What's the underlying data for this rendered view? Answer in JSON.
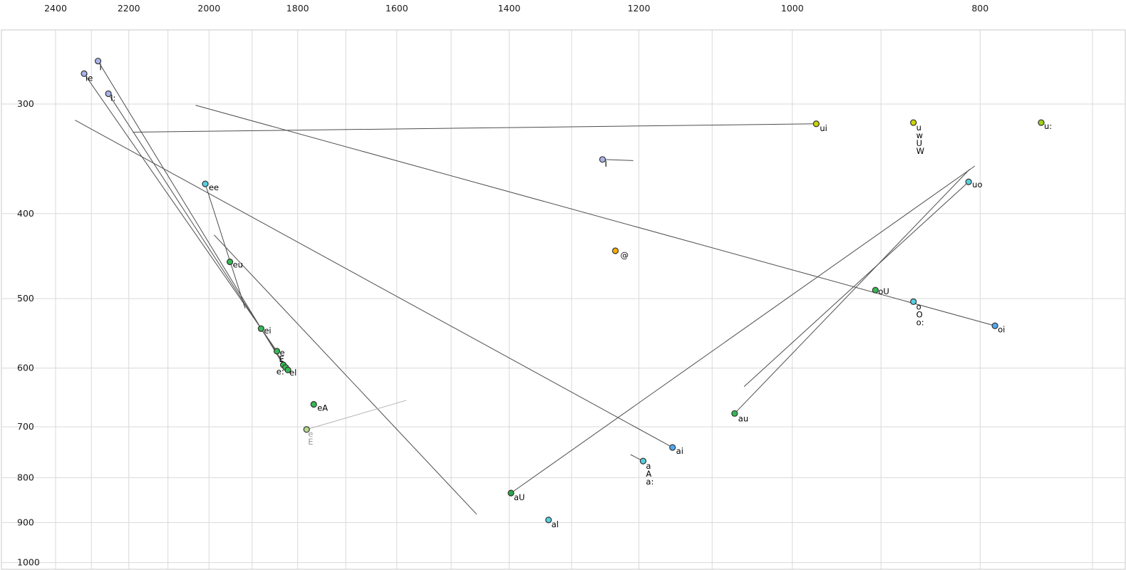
{
  "chart_data": {
    "type": "scatter",
    "title": "",
    "xlabel": "",
    "ylabel": "",
    "description": "Vowel formant chart (F2 horizontal reversed log axis in Hz, F1 vertical log axis in Hz) with monophthong/diphthong points and trajectory lines",
    "x_axis": {
      "scale": "log",
      "reversed": true,
      "range": [
        2550,
        675
      ],
      "major_ticks": [
        2400,
        2200,
        2000,
        1800,
        1600,
        1400,
        1200,
        1000,
        800
      ],
      "minor_ticks": [
        2300,
        2100,
        1900,
        1700,
        1500,
        1300,
        1100,
        900,
        700
      ]
    },
    "y_axis": {
      "scale": "log",
      "increases_downward": true,
      "range": [
        248,
        1015
      ],
      "major_ticks": [
        300,
        400,
        500,
        600,
        700,
        800,
        900,
        1000
      ],
      "minor_ticks": []
    },
    "grid": true,
    "legend": false,
    "grid_color": "#d9d9d9",
    "border_color": "#c9c9c9",
    "line_color": "#4d4d4d",
    "points": [
      {
        "labels": [
          "ie"
        ],
        "f2": 2320,
        "f1": 277,
        "color": "#a9b4e8",
        "label_offset": [
          2,
          10
        ]
      },
      {
        "labels": [
          "i"
        ],
        "f2": 2282,
        "f1": 268,
        "color": "#a9b4e8",
        "label_offset": [
          2,
          13
        ]
      },
      {
        "labels": [
          "I:"
        ],
        "f2": 2254,
        "f1": 292,
        "color": "#a9b4e8",
        "label_offset": [
          3,
          10
        ]
      },
      {
        "labels": [
          "ui"
        ],
        "f2": 972,
        "f1": 316,
        "color": "#c9d400",
        "label_offset": [
          5,
          10
        ]
      },
      {
        "labels": [
          "u",
          "w",
          "U",
          "W"
        ],
        "f2": 866,
        "f1": 315,
        "color": "#c9d400",
        "label_offset": [
          4,
          11
        ]
      },
      {
        "labels": [
          "u:"
        ],
        "f2": 744,
        "f1": 315,
        "color": "#9ed114",
        "label_offset": [
          4,
          9
        ]
      },
      {
        "labels": [
          "I"
        ],
        "f2": 1253,
        "f1": 347,
        "color": "#a9b4e8",
        "label_offset": [
          3,
          10
        ]
      },
      {
        "labels": [
          "ee"
        ],
        "f2": 2009,
        "f1": 370,
        "color": "#56cfe0",
        "label_offset": [
          5,
          9
        ]
      },
      {
        "labels": [
          "uo"
        ],
        "f2": 811,
        "f1": 368,
        "color": "#56cfe0",
        "label_offset": [
          5,
          8
        ]
      },
      {
        "labels": [
          "@"
        ],
        "f2": 1234,
        "f1": 441,
        "color": "#ffae00",
        "label_offset": [
          7,
          10
        ]
      },
      {
        "labels": [
          "eu"
        ],
        "f2": 1951,
        "f1": 454,
        "color": "#35b954",
        "label_offset": [
          4,
          8
        ]
      },
      {
        "labels": [
          "oU"
        ],
        "f2": 906,
        "f1": 489,
        "color": "#35b954",
        "label_offset": [
          4,
          6
        ]
      },
      {
        "labels": [
          "o",
          "O",
          "o:"
        ],
        "f2": 866,
        "f1": 504,
        "color": "#56cfe0",
        "label_offset": [
          4,
          11
        ]
      },
      {
        "labels": [
          "oi"
        ],
        "f2": 786,
        "f1": 537,
        "color": "#4fa8f7",
        "label_offset": [
          4,
          9
        ]
      },
      {
        "labels": [
          "ei"
        ],
        "f2": 1880,
        "f1": 541,
        "color": "#35b954",
        "label_offset": [
          4,
          7
        ]
      },
      {
        "labels": [
          "e"
        ],
        "f2": 1845,
        "f1": 574,
        "color": "#35b954",
        "label_offset": [
          4,
          6
        ]
      },
      {
        "labels": [
          "E"
        ],
        "f2": 1831,
        "f1": 595,
        "color": "#35b954",
        "label_offset": [
          -6,
          -4
        ]
      },
      {
        "labels": [
          "e:"
        ],
        "f2": 1826,
        "f1": 599,
        "color": "#35b954",
        "label_offset": [
          -13,
          10
        ]
      },
      {
        "labels": [
          "el"
        ],
        "f2": 1821,
        "f1": 603,
        "color": "#35b954",
        "label_offset": [
          2,
          8
        ]
      },
      {
        "labels": [
          "eA"
        ],
        "f2": 1766,
        "f1": 660,
        "color": "#35b954",
        "label_offset": [
          5,
          9
        ]
      },
      {
        "labels": [
          "au"
        ],
        "f2": 1071,
        "f1": 676,
        "color": "#35b954",
        "label_offset": [
          5,
          11
        ]
      },
      {
        "labels": [
          "e",
          "E"
        ],
        "f2": 1781,
        "f1": 705,
        "color": "#b5d98c",
        "label_color": "#9a9a9a",
        "label_offset": [
          2,
          10
        ]
      },
      {
        "labels": [
          "ai"
        ],
        "f2": 1153,
        "f1": 739,
        "color": "#4fa8f7",
        "label_offset": [
          5,
          9
        ]
      },
      {
        "labels": [
          "a",
          "A",
          "a:"
        ],
        "f2": 1194,
        "f1": 766,
        "color": "#56cfe0",
        "label_offset": [
          4,
          11
        ]
      },
      {
        "labels": [
          "aU"
        ],
        "f2": 1397,
        "f1": 833,
        "color": "#2aa84a",
        "label_offset": [
          4,
          10
        ]
      },
      {
        "labels": [
          "al"
        ],
        "f2": 1336,
        "f1": 894,
        "color": "#56cfe0",
        "label_offset": [
          4,
          10
        ]
      }
    ],
    "trajectories": [
      {
        "name": "ui",
        "from": [
          972,
          316
        ],
        "to": [
          2189,
          323
        ],
        "color": "#4d4d4d"
      },
      {
        "name": "oi",
        "from": [
          786,
          537
        ],
        "to": [
          2032,
          301
        ],
        "color": "#4d4d4d"
      },
      {
        "name": "ai",
        "from": [
          1153,
          739
        ],
        "to": [
          2345,
          313
        ],
        "color": "#4d4d4d"
      },
      {
        "name": "ie",
        "from": [
          2320,
          277
        ],
        "to": [
          1845,
          574
        ],
        "color": "#4d4d4d"
      },
      {
        "name": "i",
        "from": [
          2282,
          268
        ],
        "to": [
          1831,
          595
        ],
        "color": "#4d4d4d"
      },
      {
        "name": "I-long",
        "from": [
          2254,
          292
        ],
        "to": [
          1821,
          603
        ],
        "color": "#4d4d4d"
      },
      {
        "name": "ee",
        "from": [
          2009,
          370
        ],
        "to": [
          1916,
          513
        ],
        "color": "#4d4d4d"
      },
      {
        "name": "front-open",
        "from": [
          1988,
          423
        ],
        "to": [
          1455,
          881
        ],
        "color": "#4d4d4d"
      },
      {
        "name": "aU",
        "from": [
          1397,
          833
        ],
        "to": [
          805,
          353
        ],
        "color": "#4d4d4d"
      },
      {
        "name": "au",
        "from": [
          1071,
          676
        ],
        "to": [
          810,
          356
        ],
        "color": "#4d4d4d"
      },
      {
        "name": "uo",
        "from": [
          811,
          368
        ],
        "to": [
          1059,
          630
        ],
        "color": "#4d4d4d"
      },
      {
        "name": "I",
        "from": [
          1253,
          347
        ],
        "to": [
          1208,
          348
        ],
        "color": "#4d4d4d"
      },
      {
        "name": "a",
        "from": [
          1194,
          766
        ],
        "to": [
          1212,
          753
        ],
        "color": "#4d4d4d"
      },
      {
        "name": "e-gray",
        "from": [
          1781,
          705
        ],
        "to": [
          1582,
          653
        ],
        "color": "#b3b3b3"
      }
    ]
  }
}
